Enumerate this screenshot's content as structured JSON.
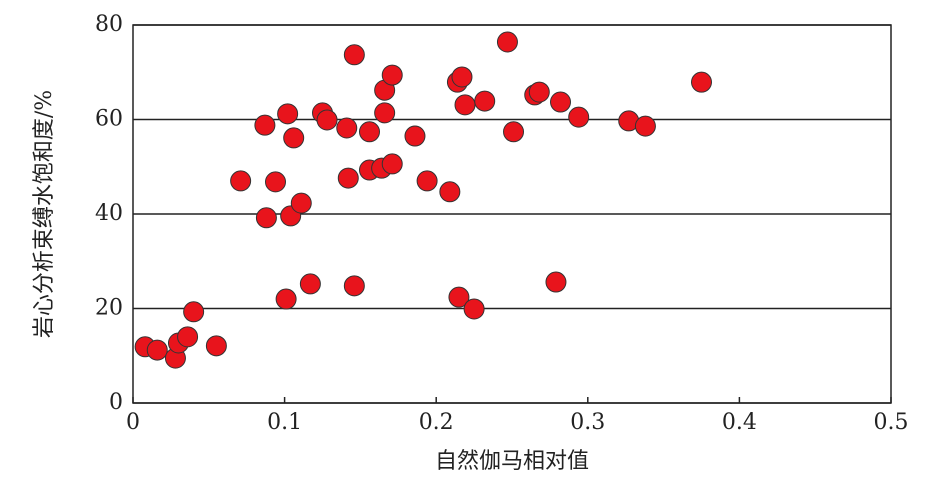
{
  "chart_data": {
    "type": "scatter",
    "x_label": "自然伽马相对值",
    "y_label": "岩心分析束缚水饱和度/%",
    "color": "#e8141c",
    "grid": true,
    "xlim": [
      0,
      0.5
    ],
    "xticks": [
      0,
      0.1,
      0.2,
      0.3,
      0.4,
      0.5
    ],
    "ylim": [
      0,
      80
    ],
    "yticks": [
      0,
      20,
      40,
      60,
      80
    ],
    "x": [
      0.008,
      0.016,
      0.028,
      0.03,
      0.036,
      0.04,
      0.055,
      0.071,
      0.087,
      0.088,
      0.094,
      0.101,
      0.102,
      0.104,
      0.106,
      0.111,
      0.117,
      0.125,
      0.128,
      0.141,
      0.142,
      0.146,
      0.146,
      0.156,
      0.156,
      0.164,
      0.166,
      0.166,
      0.171,
      0.171,
      0.186,
      0.194,
      0.209,
      0.214,
      0.215,
      0.217,
      0.219,
      0.225,
      0.232,
      0.247,
      0.251,
      0.265,
      0.268,
      0.279,
      0.282,
      0.294,
      0.327,
      0.338,
      0.375
    ],
    "values": [
      11.9,
      11.2,
      9.5,
      12.7,
      14.0,
      19.3,
      12.1,
      47.0,
      58.8,
      39.2,
      46.8,
      22.0,
      61.2,
      39.6,
      56.1,
      42.3,
      25.2,
      61.4,
      59.9,
      58.2,
      47.6,
      73.7,
      24.8,
      57.4,
      49.3,
      49.7,
      66.2,
      61.4,
      50.6,
      69.4,
      56.5,
      47.0,
      44.7,
      67.9,
      22.4,
      69.0,
      63.1,
      19.9,
      63.9,
      76.4,
      57.4,
      65.2,
      65.8,
      25.6,
      63.7,
      60.5,
      59.7,
      58.6,
      67.9
    ]
  }
}
